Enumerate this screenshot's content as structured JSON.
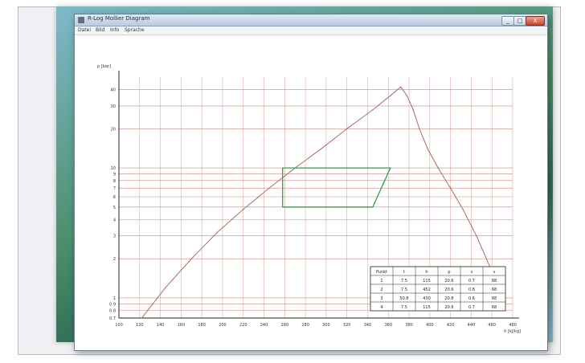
{
  "window": {
    "title": "R-Log Mollier Diagram"
  },
  "titlebar_buttons": {
    "minimize": "_",
    "maximize": "□",
    "close": "X"
  },
  "menu": {
    "items": [
      "Datei",
      "Bild",
      "Info",
      "Sprache"
    ]
  },
  "chart_data": {
    "type": "line",
    "title": "",
    "xlabel": "h [kJ/kg]",
    "ylabel": "p [bar]",
    "y_scale": "log",
    "grid": true,
    "xlim": [
      100,
      480
    ],
    "ylim": [
      0.7,
      50
    ],
    "x_tick_labels": [
      "100",
      "120",
      "140",
      "160",
      "180",
      "200",
      "220",
      "240",
      "260",
      "280",
      "300",
      "320",
      "340",
      "360",
      "380",
      "400",
      "420",
      "440",
      "460",
      "480"
    ],
    "y_tick_labels": [
      "40",
      "30",
      "20",
      "10",
      "9",
      "8",
      "7",
      "6",
      "5",
      "4",
      "3",
      "2",
      "1",
      "0.9",
      "0.8",
      "0.7"
    ],
    "series": [
      {
        "values_h": [
          122,
          145,
          170,
          195,
          220,
          245,
          270,
          295,
          320,
          345,
          362,
          372
        ],
        "values_p": [
          0.7,
          1.2,
          2.0,
          3.2,
          4.8,
          7.0,
          10,
          14,
          20,
          28,
          36,
          42
        ]
      },
      {
        "values_h": [
          372,
          378,
          384,
          390,
          398,
          408,
          420,
          432,
          445,
          460
        ],
        "values_p": [
          42,
          36,
          28,
          20,
          14,
          10,
          7,
          4.8,
          3.0,
          1.6
        ]
      },
      {
        "values_h": [
          258,
          258,
          345,
          362,
          258
        ],
        "values_p": [
          10,
          5,
          5,
          10,
          10
        ]
      }
    ],
    "point_table": {
      "headers": [
        "Punkt",
        "t",
        "h",
        "p",
        "s",
        "v"
      ],
      "rows": [
        [
          "1",
          "7.5",
          "115",
          "20.6",
          "0.7",
          "68"
        ],
        [
          "2",
          "7.5",
          "452",
          "20.6",
          "0.8",
          "68"
        ],
        [
          "3",
          "50.8",
          "430",
          "20.8",
          "0.6",
          "68"
        ],
        [
          "4",
          "7.5",
          "115",
          "20.6",
          "0.7",
          "68"
        ]
      ]
    }
  }
}
